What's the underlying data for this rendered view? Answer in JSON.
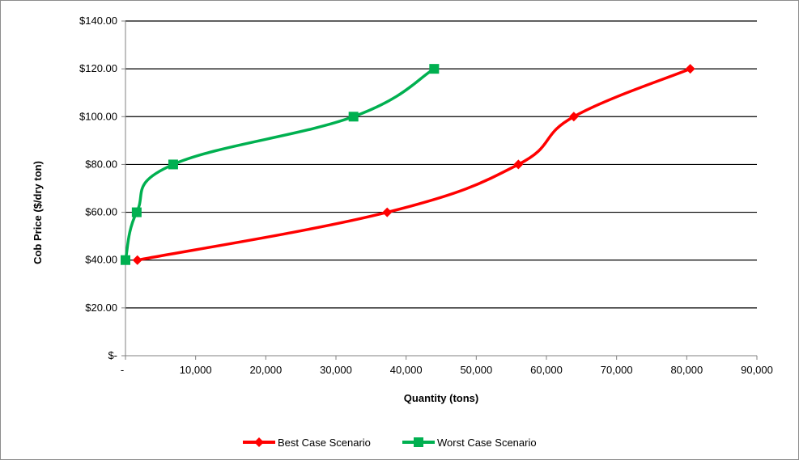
{
  "chart_data": {
    "type": "line",
    "title": "",
    "xlabel": "Quantity (tons)",
    "ylabel": "Cob Price ($/dry ton)",
    "xlim": [
      0,
      90000
    ],
    "ylim": [
      0,
      140
    ],
    "x_ticks": [
      0,
      10000,
      20000,
      30000,
      40000,
      50000,
      60000,
      70000,
      80000,
      90000
    ],
    "x_tick_labels": [
      "-",
      "10,000",
      "20,000",
      "30,000",
      "40,000",
      "50,000",
      "60,000",
      "70,000",
      "80,000",
      "90,000"
    ],
    "y_ticks": [
      0,
      20,
      40,
      60,
      80,
      100,
      120,
      140
    ],
    "y_tick_labels": [
      "$-",
      "$20.00",
      "$40.00",
      "$60.00",
      "$80.00",
      "$100.00",
      "$120.00",
      "$140.00"
    ],
    "grid": "horizontal",
    "smooth": true,
    "legend_position": "bottom",
    "series": [
      {
        "name": "Best Case Scenario",
        "color": "#ff0000",
        "marker": "diamond",
        "points": [
          {
            "x": 1700,
            "y": 40
          },
          {
            "x": 37300,
            "y": 60
          },
          {
            "x": 56000,
            "y": 80
          },
          {
            "x": 63900,
            "y": 100
          },
          {
            "x": 80500,
            "y": 120
          }
        ]
      },
      {
        "name": "Worst Case Scenario",
        "color": "#00b050",
        "marker": "square",
        "points": [
          {
            "x": 0,
            "y": 40
          },
          {
            "x": 1600,
            "y": 60
          },
          {
            "x": 6800,
            "y": 80
          },
          {
            "x": 32500,
            "y": 100
          },
          {
            "x": 44000,
            "y": 120
          }
        ]
      }
    ]
  }
}
